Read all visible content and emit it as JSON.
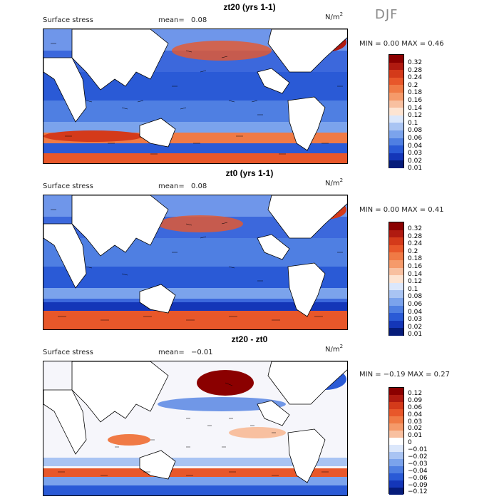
{
  "season": "DJF",
  "panels": [
    {
      "title": "zt20 (yrs 1-1)",
      "field": "Surface stress",
      "mean_label": "mean=",
      "mean_value": "0.08",
      "units": "N/m",
      "units_sup": "2",
      "minmax": "MIN =    0.00 MAX =    0.46",
      "colorbar_ticks": [
        "0.32",
        "0.28",
        "0.24",
        "0.2",
        "0.18",
        "0.16",
        "0.14",
        "0.12",
        "0.1",
        "0.08",
        "0.06",
        "0.04",
        "0.03",
        "0.02",
        "0.01"
      ]
    },
    {
      "title": "zt0 (yrs 1-1)",
      "field": "Surface stress",
      "mean_label": "mean=",
      "mean_value": "0.08",
      "units": "N/m",
      "units_sup": "2",
      "minmax": "MIN =    0.00 MAX =    0.41",
      "colorbar_ticks": [
        "0.32",
        "0.28",
        "0.24",
        "0.2",
        "0.18",
        "0.16",
        "0.14",
        "0.12",
        "0.1",
        "0.08",
        "0.06",
        "0.04",
        "0.03",
        "0.02",
        "0.01"
      ]
    },
    {
      "title": "zt20 - zt0",
      "field": "Surface stress",
      "mean_label": "mean=",
      "mean_value": "−0.01",
      "units": "N/m",
      "units_sup": "2",
      "minmax": "MIN =  −0.19 MAX =    0.27",
      "colorbar_ticks": [
        "0.12",
        "0.09",
        "0.06",
        "0.04",
        "0.03",
        "0.02",
        "0.01",
        "0",
        "−0.01",
        "−0.02",
        "−0.03",
        "−0.04",
        "−0.06",
        "−0.09",
        "−0.12"
      ]
    }
  ],
  "colors": {
    "abs_scale": [
      "#8b0000",
      "#b01a10",
      "#d43a1a",
      "#e8572a",
      "#f07a45",
      "#f59a6a",
      "#f8c0a0",
      "#fde4d2",
      "#dbe7fb",
      "#a9c4f3",
      "#7ba3ec",
      "#4f7fe2",
      "#2a5ad6",
      "#1436b8",
      "#061c7a"
    ],
    "diff_scale": [
      "#8b0000",
      "#b01a10",
      "#d43a1a",
      "#e8572a",
      "#f07a45",
      "#f59a6a",
      "#f8c0a0",
      "#ffffff",
      "#dbe7fb",
      "#a9c4f3",
      "#7ba3ec",
      "#4f7fe2",
      "#2a5ad6",
      "#1436b8",
      "#061c7a"
    ],
    "land": "#ffffff"
  }
}
